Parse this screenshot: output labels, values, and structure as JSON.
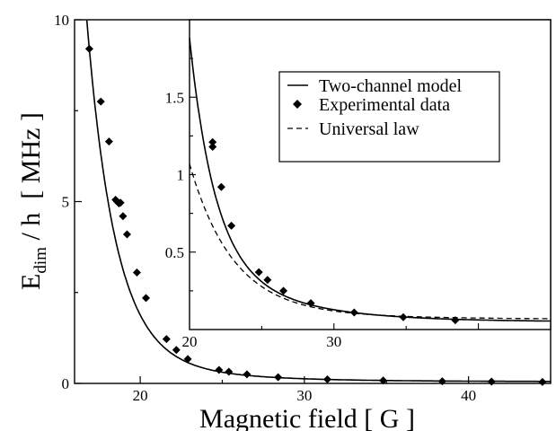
{
  "chart_data": [
    {
      "type": "scatter",
      "xlabel": "Magnetic field [ G ]",
      "ylabel_main": "E",
      "ylabel_sub": "dim",
      "ylabel_rest": " / h  [ MHz ]",
      "xlim": [
        16,
        45
      ],
      "ylim": [
        0,
        10
      ],
      "xticks": [
        20,
        30,
        40
      ],
      "yticks": [
        0,
        5,
        10
      ],
      "xtick_labels": [
        "20",
        "30",
        "40"
      ],
      "ytick_labels": [
        "0",
        "5",
        "10"
      ],
      "grid": false,
      "series": [
        {
          "name": "Experimental data",
          "style": "diamond",
          "x": [
            16.9,
            17.6,
            18.1,
            18.5,
            18.6,
            18.7,
            18.8,
            18.95,
            19.2,
            19.8,
            20.35,
            21.6,
            22.2,
            22.9,
            24.8,
            25.4,
            26.5,
            28.4,
            31.4,
            34.8,
            38.4,
            41.4,
            44.5
          ],
          "y": [
            9.2,
            7.75,
            6.65,
            5.05,
            5.0,
            4.95,
            4.97,
            4.6,
            4.1,
            3.05,
            2.35,
            1.22,
            0.92,
            0.67,
            0.37,
            0.32,
            0.25,
            0.17,
            0.11,
            0.08,
            0.06,
            0.05,
            0.04
          ]
        },
        {
          "name": "Two-channel model",
          "style": "solid",
          "model": "two-channel"
        }
      ]
    },
    {
      "type": "scatter",
      "inset": true,
      "xlim": [
        20,
        45
      ],
      "ylim": [
        0,
        2
      ],
      "xticks": [
        20,
        30
      ],
      "yticks": [
        0.5,
        1,
        1.5
      ],
      "xtick_labels": [
        "20",
        "30"
      ],
      "ytick_labels": [
        "0.5",
        "1",
        "1.5"
      ],
      "legend_position": "top-right",
      "grid": false,
      "series": [
        {
          "name": "Two-channel model",
          "style": "solid",
          "model": "two-channel"
        },
        {
          "name": "Experimental data",
          "style": "diamond",
          "x": [
            21.6,
            21.6,
            22.2,
            22.9,
            24.8,
            25.4,
            26.5,
            28.4,
            31.4,
            34.8,
            38.4
          ],
          "y": [
            1.21,
            1.18,
            0.92,
            0.67,
            0.37,
            0.32,
            0.25,
            0.17,
            0.11,
            0.08,
            0.06
          ]
        },
        {
          "name": "Universal law",
          "style": "dashed",
          "model": "universal"
        }
      ]
    }
  ]
}
